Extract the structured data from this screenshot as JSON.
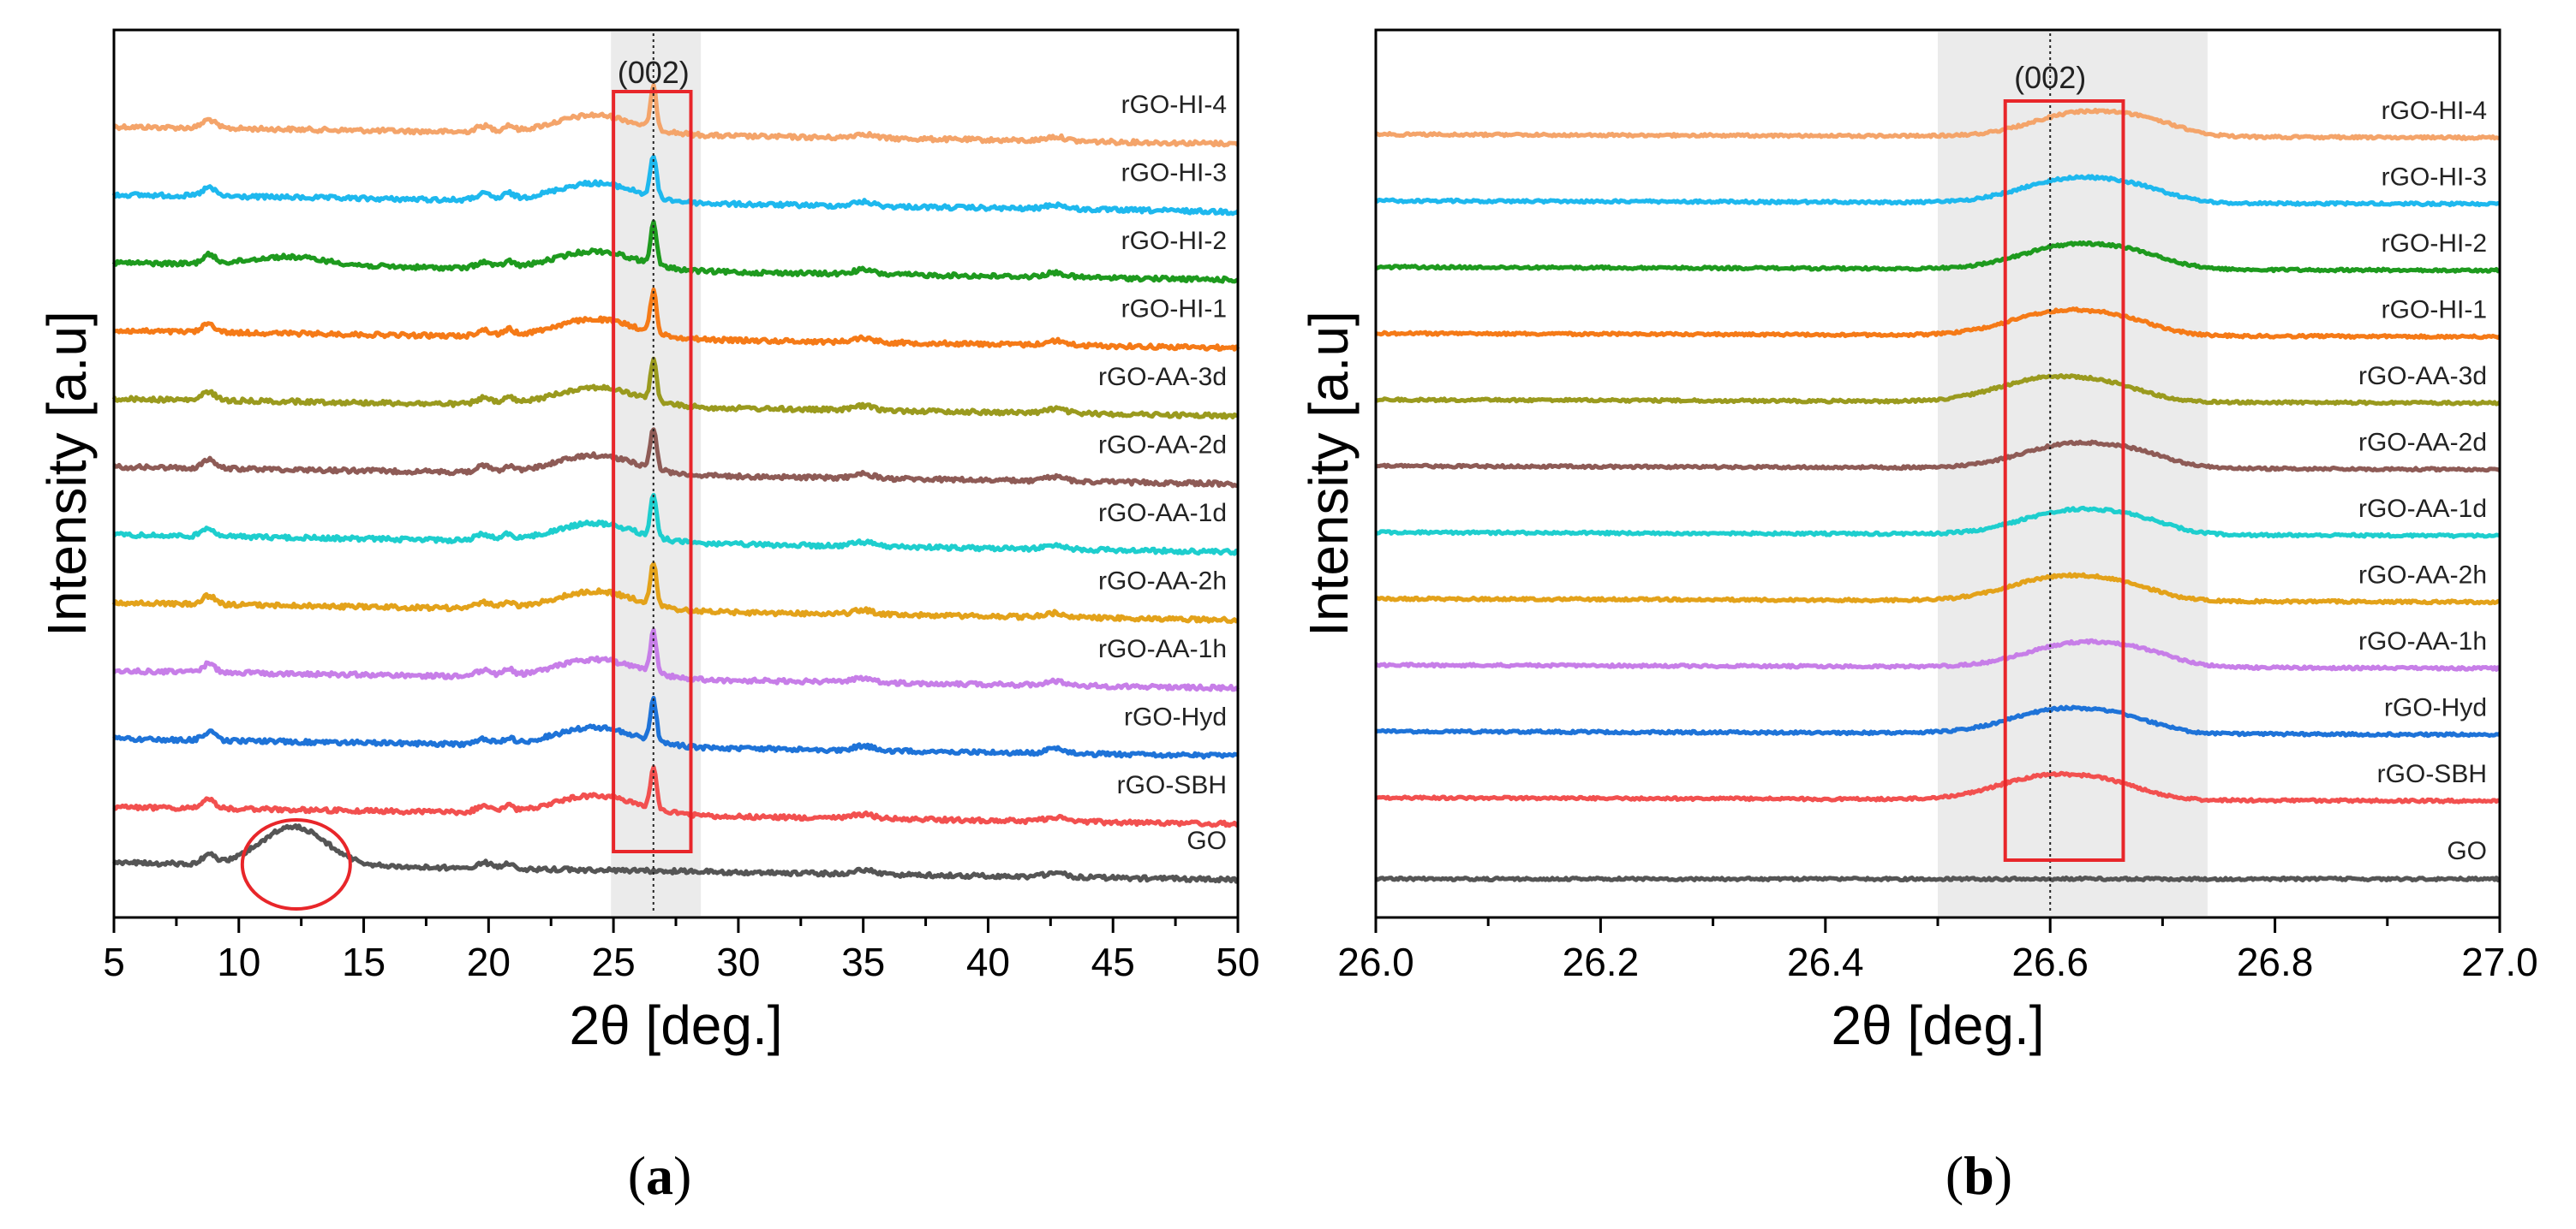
{
  "chart_data": [
    {
      "panel": "a",
      "panel_label_open": "(",
      "panel_label_letter": "a",
      "panel_label_close": ")",
      "type": "line",
      "xlabel": "2θ [deg.]",
      "ylabel": "Intensity [a.u]",
      "xlim": [
        5,
        50
      ],
      "xticks": [
        5,
        10,
        15,
        20,
        25,
        30,
        35,
        40,
        45,
        50
      ],
      "xtick_labels": [
        "5",
        "10",
        "15",
        "20",
        "25",
        "30",
        "35",
        "40",
        "45",
        "50"
      ],
      "peak_label": "(002)",
      "peak_position": 26.6,
      "shaded_band": [
        24.9,
        28.5
      ],
      "highlight_box_x": [
        25.0,
        28.1
      ],
      "circle_annotation_center": [
        12.3,
        "GO"
      ],
      "series": [
        {
          "name": "rGO-HI-4",
          "color": "#F4A46A"
        },
        {
          "name": "rGO-HI-3",
          "color": "#1EB8EE"
        },
        {
          "name": "rGO-HI-2",
          "color": "#1E9A1E"
        },
        {
          "name": "rGO-HI-1",
          "color": "#F57A17"
        },
        {
          "name": "rGO-AA-3d",
          "color": "#9A9A1E"
        },
        {
          "name": "rGO-AA-2d",
          "color": "#8E5B56"
        },
        {
          "name": "rGO-AA-1d",
          "color": "#1ECECE"
        },
        {
          "name": "rGO-AA-2h",
          "color": "#E3A21A"
        },
        {
          "name": "rGO-AA-1h",
          "color": "#C77EE8"
        },
        {
          "name": "rGO-Hyd",
          "color": "#1E73D8"
        },
        {
          "name": "rGO-SBH",
          "color": "#F2504F"
        },
        {
          "name": "GO",
          "color": "#555555"
        }
      ]
    },
    {
      "panel": "b",
      "panel_label_open": "(",
      "panel_label_letter": "b",
      "panel_label_close": ")",
      "type": "line",
      "xlabel": "2θ [deg.]",
      "ylabel": "Intensity [a.u]",
      "xlim": [
        26.0,
        27.0
      ],
      "xticks": [
        26.0,
        26.2,
        26.4,
        26.6,
        26.8,
        27.0
      ],
      "xtick_labels": [
        "26.0",
        "26.2",
        "26.4",
        "26.6",
        "26.8",
        "27.0"
      ],
      "peak_label": "(002)",
      "peak_position": 26.6,
      "shaded_band": [
        26.5,
        26.74
      ],
      "highlight_box_x": [
        26.56,
        26.665
      ],
      "series": [
        {
          "name": "rGO-HI-4",
          "color": "#F4A46A"
        },
        {
          "name": "rGO-HI-3",
          "color": "#1EB8EE"
        },
        {
          "name": "rGO-HI-2",
          "color": "#1E9A1E"
        },
        {
          "name": "rGO-HI-1",
          "color": "#F57A17"
        },
        {
          "name": "rGO-AA-3d",
          "color": "#9A9A1E"
        },
        {
          "name": "rGO-AA-2d",
          "color": "#8E5B56"
        },
        {
          "name": "rGO-AA-1d",
          "color": "#1ECECE"
        },
        {
          "name": "rGO-AA-2h",
          "color": "#E3A21A"
        },
        {
          "name": "rGO-AA-1h",
          "color": "#C77EE8"
        },
        {
          "name": "rGO-Hyd",
          "color": "#1E73D8"
        },
        {
          "name": "rGO-SBH",
          "color": "#F2504F"
        },
        {
          "name": "GO",
          "color": "#555555"
        }
      ]
    }
  ]
}
